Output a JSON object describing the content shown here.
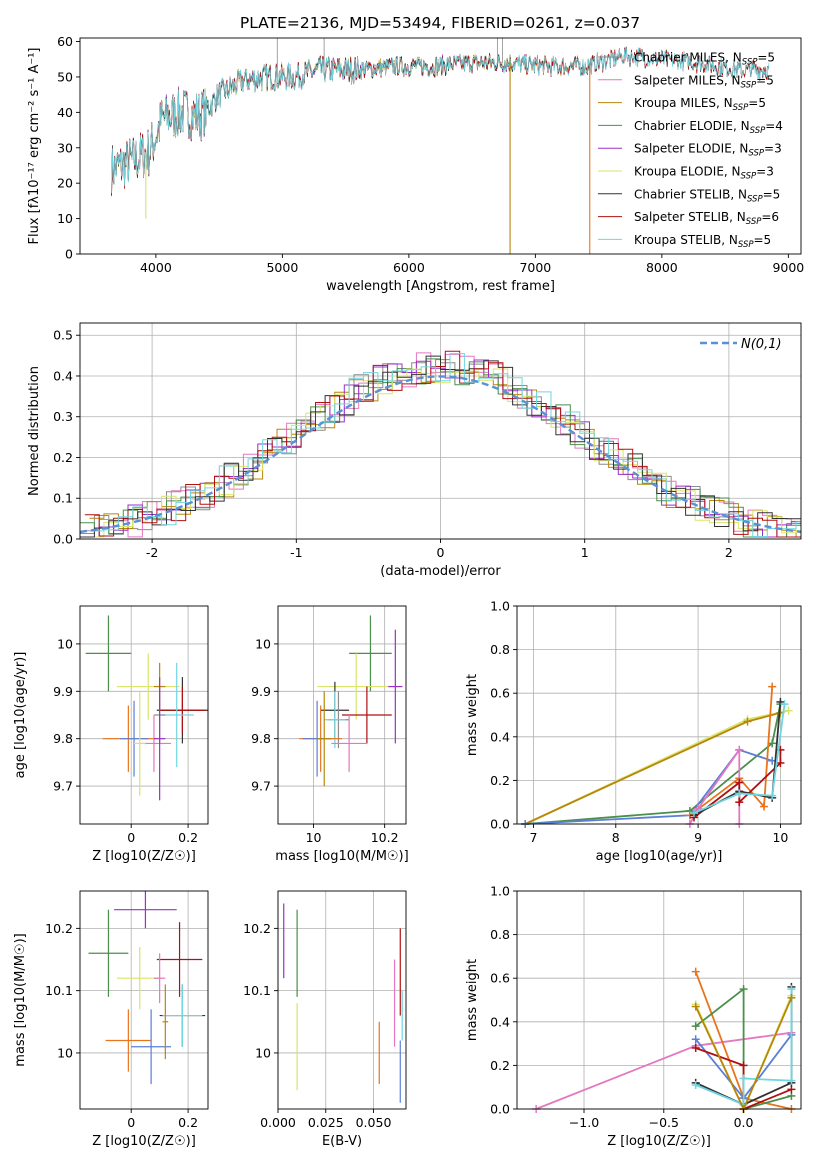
{
  "title": "PLATE=2136, MJD=53494, FIBERID=0261, z=0.037",
  "colors": {
    "Chabrier MILES": "#8c8c8c",
    "Salpeter MILES": "#e377c2",
    "Kroupa MILES": "#b8860b",
    "Chabrier ELODIE": "#4a8f4a",
    "Salpeter ELODIE": "#9b30c8",
    "Kroupa ELODIE": "#d8e56a",
    "Chabrier STELIB": "#333333",
    "Salpeter STELIB": "#b01010",
    "Kroupa STELIB": "#6fd5e0",
    "extra_orange": "#e8741c",
    "extra_blue": "#5b7fd6"
  },
  "chart_data": [
    {
      "id": "spectrum",
      "type": "line",
      "xlabel": "wavelength [Angstrom, rest frame]",
      "ylabel": "Flux [fλ10⁻¹⁷ erg cm⁻² s⁻¹ A⁻¹]",
      "xlim": [
        3400,
        9100
      ],
      "ylim": [
        0,
        61
      ],
      "xticks": [
        4000,
        5000,
        6000,
        7000,
        8000,
        9000
      ],
      "yticks": [
        0,
        10,
        20,
        30,
        40,
        50,
        60
      ],
      "continuum": {
        "x": [
          3650,
          3800,
          3950,
          4050,
          4200,
          4350,
          4500,
          4700,
          4900,
          5100,
          5300,
          5600,
          5900,
          6200,
          6500,
          6800,
          7100,
          7400,
          7700,
          8000,
          8300,
          8600,
          8850
        ],
        "y": [
          24,
          26,
          29,
          38,
          40,
          39,
          45,
          49,
          50,
          50,
          52,
          52,
          53,
          53,
          54,
          54,
          53,
          53,
          56,
          55,
          54,
          52,
          52
        ]
      },
      "series": [
        {
          "name": "Chabrier MILES",
          "nssp": "5",
          "x_range": [
            3650,
            7450
          ]
        },
        {
          "name": "Salpeter MILES",
          "nssp": "5",
          "x_range": [
            3650,
            7450
          ]
        },
        {
          "name": "Kroupa MILES",
          "nssp": "5",
          "x_range": [
            3650,
            7450
          ]
        },
        {
          "name": "Chabrier ELODIE",
          "nssp": "4",
          "x_range": [
            3900,
            6800
          ]
        },
        {
          "name": "Salpeter ELODIE",
          "nssp": "3",
          "x_range": [
            3900,
            6800
          ]
        },
        {
          "name": "Kroupa ELODIE",
          "nssp": "3",
          "x_range": [
            3900,
            6800
          ]
        },
        {
          "name": "Chabrier STELIB",
          "nssp": "5",
          "x_range": [
            3650,
            8850
          ]
        },
        {
          "name": "Salpeter STELIB",
          "nssp": "6",
          "x_range": [
            3650,
            8850
          ]
        },
        {
          "name": "Kroupa STELIB",
          "nssp": "5",
          "x_range": [
            3650,
            8850
          ]
        }
      ]
    },
    {
      "id": "residuals",
      "type": "line",
      "xlabel": "(data-model)/error",
      "ylabel": "Normed distribution",
      "xlim": [
        -2.5,
        2.5
      ],
      "ylim": [
        0,
        0.53
      ],
      "xticks": [
        -2,
        -1,
        0,
        1,
        2
      ],
      "yticks": [
        0.0,
        0.1,
        0.2,
        0.3,
        0.4,
        0.5
      ],
      "legend": "N(0,1)",
      "legend_position": "top-right",
      "grid": true
    },
    {
      "id": "age_vs_Z",
      "type": "scatter",
      "xlabel": "Z [log10(Z/Z☉)]",
      "ylabel": "age  [log10(age/yr)]",
      "xlim": [
        -0.18,
        0.27
      ],
      "ylim": [
        9.62,
        10.08
      ],
      "xticks": [
        0.0,
        0.2
      ],
      "yticks": [
        9.7,
        9.8,
        9.9,
        10.0
      ],
      "points": [
        {
          "c": "Chabrier ELODIE",
          "x": -0.08,
          "y": 9.98,
          "xe": 0.08,
          "ye": 0.08
        },
        {
          "c": "Kroupa ELODIE",
          "x": 0.06,
          "y": 9.91,
          "xe": 0.11,
          "ye": 0.07
        },
        {
          "c": "Kroupa MILES",
          "x": 0.1,
          "y": 9.91,
          "xe": 0.02,
          "ye": 0.05
        },
        {
          "c": "Chabrier STELIB",
          "x": 0.18,
          "y": 9.86,
          "xe": 0.09,
          "ye": 0.07
        },
        {
          "c": "Salpeter STELIB",
          "x": 0.18,
          "y": 9.86,
          "xe": 0.08,
          "ye": 0.05
        },
        {
          "c": "Kroupa STELIB",
          "x": 0.16,
          "y": 9.85,
          "xe": 0.06,
          "ye": 0.11
        },
        {
          "c": "Chabrier MILES",
          "x": 0.1,
          "y": 9.85,
          "xe": 0.02,
          "ye": 0.06
        },
        {
          "c": "extra_orange",
          "x": -0.01,
          "y": 9.8,
          "xe": 0.09,
          "ye": 0.07
        },
        {
          "c": "extra_blue",
          "x": 0.01,
          "y": 9.8,
          "xe": 0.05,
          "ye": 0.08
        },
        {
          "c": "Salpeter MILES",
          "x": 0.08,
          "y": 9.79,
          "xe": 0.06,
          "ye": 0.06
        },
        {
          "c": "Kroupa ELODIE",
          "x": 0.03,
          "y": 9.79,
          "xe": 0.02,
          "ye": 0.11
        },
        {
          "c": "Salpeter ELODIE",
          "x": 0.1,
          "y": 9.8,
          "xe": 0.02,
          "ye": 0.13
        }
      ]
    },
    {
      "id": "age_vs_mass",
      "type": "scatter",
      "xlabel": "mass [log10(M/M☉)]",
      "ylabel": "",
      "xlim": [
        9.9,
        10.26
      ],
      "ylim": [
        9.62,
        10.08
      ],
      "xticks": [
        10.0,
        10.2
      ],
      "yticks": [
        9.7,
        9.8,
        9.9,
        10.0
      ],
      "points": [
        {
          "c": "Chabrier ELODIE",
          "x": 10.16,
          "y": 9.98,
          "xe": 0.06,
          "ye": 0.08
        },
        {
          "c": "Kroupa ELODIE",
          "x": 10.12,
          "y": 9.91,
          "xe": 0.11,
          "ye": 0.07
        },
        {
          "c": "Salpeter ELODIE",
          "x": 10.23,
          "y": 9.91,
          "xe": 0.02,
          "ye": 0.12
        },
        {
          "c": "Chabrier STELIB",
          "x": 10.06,
          "y": 9.86,
          "xe": 0.04,
          "ye": 0.06
        },
        {
          "c": "Salpeter STELIB",
          "x": 10.15,
          "y": 9.85,
          "xe": 0.07,
          "ye": 0.06
        },
        {
          "c": "Chabrier MILES",
          "x": 10.07,
          "y": 9.84,
          "xe": 0.03,
          "ye": 0.06
        },
        {
          "c": "Kroupa STELIB",
          "x": 10.06,
          "y": 9.84,
          "xe": 0.03,
          "ye": 0.06
        },
        {
          "c": "extra_orange",
          "x": 10.02,
          "y": 9.8,
          "xe": 0.06,
          "ye": 0.07
        },
        {
          "c": "extra_blue",
          "x": 10.01,
          "y": 9.8,
          "xe": 0.04,
          "ye": 0.08
        },
        {
          "c": "Salpeter MILES",
          "x": 10.1,
          "y": 9.79,
          "xe": 0.05,
          "ye": 0.06
        },
        {
          "c": "Kroupa MILES",
          "x": 10.03,
          "y": 9.8,
          "xe": 0.02,
          "ye": 0.1
        }
      ]
    },
    {
      "id": "weight_vs_age",
      "type": "line",
      "xlabel": "age  [log10(age/yr)]",
      "ylabel": "mass weight",
      "xlim": [
        6.8,
        10.25
      ],
      "ylim": [
        0,
        1
      ],
      "xticks": [
        7,
        8,
        9,
        10
      ],
      "yticks": [
        0.0,
        0.2,
        0.4,
        0.6,
        0.8,
        1.0
      ],
      "grid": true,
      "series": [
        {
          "c": "Kroupa ELODIE",
          "x": [
            6.9,
            9.6,
            10.1
          ],
          "y": [
            0.0,
            0.48,
            0.52
          ]
        },
        {
          "c": "Kroupa MILES",
          "x": [
            6.9,
            9.6,
            10.0
          ],
          "y": [
            0.0,
            0.47,
            0.51
          ]
        },
        {
          "c": "Chabrier ELODIE",
          "x": [
            6.9,
            8.9,
            9.9,
            10.0
          ],
          "y": [
            0.0,
            0.06,
            0.37,
            0.55
          ]
        },
        {
          "c": "extra_blue",
          "x": [
            6.9,
            8.9,
            9.5,
            9.9
          ],
          "y": [
            0.0,
            0.04,
            0.34,
            0.29
          ]
        },
        {
          "c": "extra_orange",
          "x": [
            8.9,
            9.5,
            9.8,
            9.9
          ],
          "y": [
            0.04,
            0.21,
            0.08,
            0.63
          ]
        },
        {
          "c": "Salpeter MILES",
          "x": [
            8.9,
            9.0,
            9.5,
            9.5
          ],
          "y": [
            0.0,
            0.07,
            0.34,
            0.0
          ]
        },
        {
          "c": "Salpeter STELIB",
          "x": [
            8.95,
            9.5,
            9.5,
            10.0,
            10.0
          ],
          "y": [
            0.03,
            0.19,
            0.1,
            0.28,
            0.34
          ]
        },
        {
          "c": "Chabrier STELIB",
          "x": [
            8.95,
            9.5,
            9.9,
            10.0
          ],
          "y": [
            0.04,
            0.15,
            0.12,
            0.56
          ]
        },
        {
          "c": "Kroupa STELIB",
          "x": [
            8.95,
            9.5,
            9.9,
            10.05
          ],
          "y": [
            0.05,
            0.14,
            0.13,
            0.55
          ]
        }
      ]
    },
    {
      "id": "mass_vs_Z",
      "type": "scatter",
      "xlabel": "Z [log10(Z/Z☉)]",
      "ylabel": "mass [log10(M/M☉)]",
      "xlim": [
        -0.18,
        0.27
      ],
      "ylim": [
        9.91,
        10.26
      ],
      "xticks": [
        0.0,
        0.2
      ],
      "yticks": [
        10.0,
        10.1,
        10.2
      ],
      "points": [
        {
          "c": "Salpeter ELODIE",
          "x": 0.05,
          "y": 10.23,
          "xe": 0.11,
          "ye": 0.03
        },
        {
          "c": "Chabrier ELODIE",
          "x": -0.08,
          "y": 10.16,
          "xe": 0.07,
          "ye": 0.07
        },
        {
          "c": "Salpeter STELIB",
          "x": 0.17,
          "y": 10.15,
          "xe": 0.08,
          "ye": 0.06
        },
        {
          "c": "Kroupa ELODIE",
          "x": 0.03,
          "y": 10.12,
          "xe": 0.08,
          "ye": 0.05
        },
        {
          "c": "Salpeter MILES",
          "x": 0.1,
          "y": 10.12,
          "xe": 0.02,
          "ye": 0.04
        },
        {
          "c": "Chabrier STELIB",
          "x": 0.18,
          "y": 10.06,
          "xe": 0.08,
          "ye": 0.05
        },
        {
          "c": "Kroupa STELIB",
          "x": 0.18,
          "y": 10.06,
          "xe": 0.07,
          "ye": 0.05
        },
        {
          "c": "extra_orange",
          "x": -0.01,
          "y": 10.02,
          "xe": 0.08,
          "ye": 0.05
        },
        {
          "c": "extra_blue",
          "x": 0.07,
          "y": 10.01,
          "xe": 0.07,
          "ye": 0.06
        },
        {
          "c": "Kroupa MILES",
          "x": 0.12,
          "y": 10.05,
          "xe": 0.01,
          "ye": 0.06
        }
      ]
    },
    {
      "id": "mass_vs_ebv",
      "type": "scatter",
      "xlabel": "E(B-V)",
      "ylabel": "",
      "xlim": [
        0.0,
        0.067
      ],
      "ylim": [
        9.91,
        10.26
      ],
      "xticks": [
        0.0,
        0.025,
        0.05
      ],
      "yticks": [
        10.0,
        10.1,
        10.2
      ],
      "xtick_labels": [
        "0.000",
        "0.025",
        "0.050"
      ],
      "points": [
        {
          "c": "Salpeter ELODIE",
          "x": 0.003,
          "y": 10.18,
          "ye": 0.06
        },
        {
          "c": "Chabrier ELODIE",
          "x": 0.01,
          "y": 10.16,
          "ye": 0.07
        },
        {
          "c": "Kroupa ELODIE",
          "x": 0.01,
          "y": 10.01,
          "ye": 0.07
        },
        {
          "c": "extra_orange",
          "x": 0.053,
          "y": 10.0,
          "ye": 0.05
        },
        {
          "c": "Salpeter MILES",
          "x": 0.061,
          "y": 10.08,
          "ye": 0.07
        },
        {
          "c": "Salpeter STELIB",
          "x": 0.064,
          "y": 10.13,
          "ye": 0.07
        },
        {
          "c": "Kroupa STELIB",
          "x": 0.065,
          "y": 10.06,
          "ye": 0.04
        },
        {
          "c": "extra_blue",
          "x": 0.064,
          "y": 9.97,
          "ye": 0.05
        }
      ]
    },
    {
      "id": "weight_vs_Z",
      "type": "line",
      "xlabel": "Z [log10(Z/Z☉)]",
      "ylabel": "mass weight",
      "xlim": [
        -1.42,
        0.36
      ],
      "ylim": [
        0,
        1
      ],
      "xticks": [
        -1.0,
        -0.5,
        0.0
      ],
      "yticks": [
        0.0,
        0.2,
        0.4,
        0.6,
        0.8,
        1.0
      ],
      "xtick_labels": [
        "−1.0",
        "−0.5",
        "0.0"
      ],
      "grid": true,
      "series": [
        {
          "c": "Salpeter MILES",
          "x": [
            -1.3,
            -0.3,
            0.3
          ],
          "y": [
            0.0,
            0.29,
            0.35
          ]
        },
        {
          "c": "extra_orange",
          "x": [
            -0.3,
            0.0,
            0.3
          ],
          "y": [
            0.63,
            0.05,
            0.0
          ]
        },
        {
          "c": "Kroupa ELODIE",
          "x": [
            -0.3,
            0.0,
            0.3
          ],
          "y": [
            0.48,
            0.0,
            0.52
          ]
        },
        {
          "c": "Chabrier ELODIE",
          "x": [
            -0.3,
            0.0,
            0.0,
            0.3
          ],
          "y": [
            0.38,
            0.55,
            0.0,
            0.06
          ]
        },
        {
          "c": "extra_blue",
          "x": [
            -0.3,
            0.0,
            0.3
          ],
          "y": [
            0.32,
            0.05,
            0.34
          ]
        },
        {
          "c": "Salpeter STELIB",
          "x": [
            -0.3,
            0.0,
            0.0,
            0.3
          ],
          "y": [
            0.28,
            0.2,
            0.0,
            0.09
          ]
        },
        {
          "c": "Chabrier STELIB",
          "x": [
            -0.3,
            0.0,
            0.3,
            0.3
          ],
          "y": [
            0.12,
            0.02,
            0.12,
            0.56
          ]
        },
        {
          "c": "Kroupa STELIB",
          "x": [
            -0.3,
            0.0,
            0.0,
            0.3,
            0.3
          ],
          "y": [
            0.11,
            0.02,
            0.14,
            0.13,
            0.55
          ]
        },
        {
          "c": "Kroupa MILES",
          "x": [
            -0.3,
            0.0,
            0.3
          ],
          "y": [
            0.47,
            0.0,
            0.51
          ]
        }
      ]
    }
  ]
}
